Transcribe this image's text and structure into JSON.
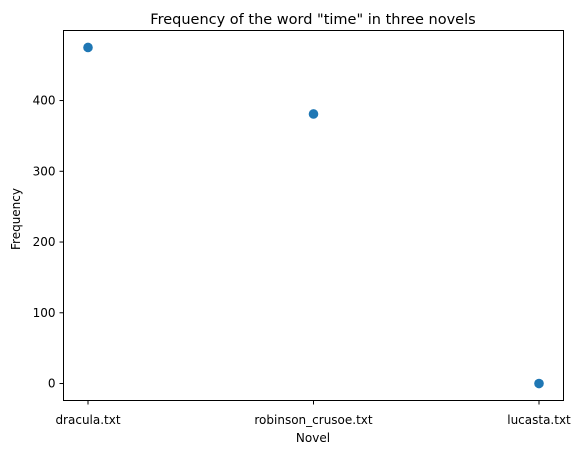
{
  "chart_data": {
    "type": "scatter",
    "title": "Frequency of the word \"time\" in three novels",
    "xlabel": "Novel",
    "ylabel": "Frequency",
    "categories": [
      "dracula.txt",
      "robinson_crusoe.txt",
      "lucasta.txt"
    ],
    "values": [
      475,
      381,
      0
    ],
    "yticks": [
      0,
      100,
      200,
      300,
      400
    ],
    "ytick_labels": [
      "0",
      "100",
      "200",
      "300",
      "400"
    ],
    "ylim": [
      -24,
      499
    ],
    "grid": false,
    "legend": "none",
    "point_color": "#1f77b4"
  }
}
